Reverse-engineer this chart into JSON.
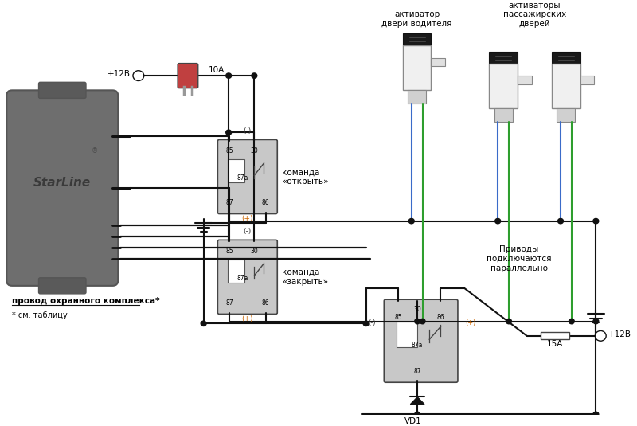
{
  "bg": "#ffffff",
  "wc": "#111111",
  "relay_fill": "#c8c8c8",
  "relay_border": "#444444",
  "sl_fill": "#6e6e6e",
  "sl_border": "#555555",
  "sl_notch": "#5a5a5a",
  "blue": "#3a6bc9",
  "green": "#2e9e2e",
  "fuse_color": "#c04040",
  "orange": "#cc6600",
  "title_driver": "активатор\nдвери водителя",
  "title_passenger": "активаторы\nпассажирских\nдверей",
  "label_parallel": "Приводы\nподключаются\nпараллельно",
  "label_wire": "провод охранного комплекса*",
  "label_table": "* см. таблицу",
  "label_vd1": "VD1",
  "label_10A": "10А",
  "label_15A": "15А",
  "label_p12t": "+12В",
  "label_p12b": "+12В",
  "label_open": "команда\n«открыть»",
  "label_close": "команда\n«закрыть»",
  "label_minus": "(-)",
  "label_plus": "(+)"
}
